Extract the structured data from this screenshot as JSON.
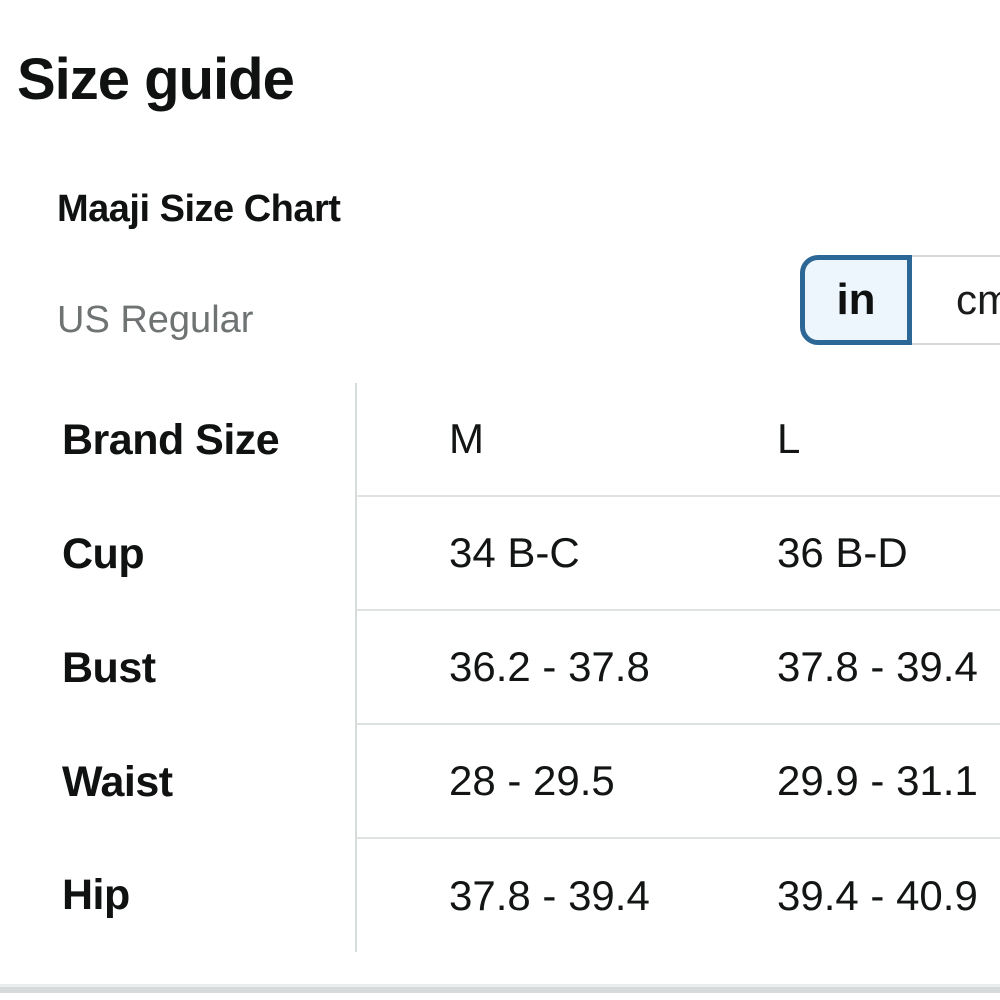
{
  "page": {
    "title": "Size guide"
  },
  "size_chart": {
    "brand_title": "Maaji Size Chart",
    "fit_type": "US Regular"
  },
  "unit_toggle": {
    "selected": "in",
    "in_label": "in",
    "cm_label": "cm",
    "selected_border_color": "#2d6796",
    "selected_bg_color": "#edf6fc"
  },
  "table": {
    "header": {
      "label": "Brand Size",
      "m": "M",
      "l": "L"
    },
    "rows": [
      {
        "label": "Cup",
        "m": "34 B-C",
        "l": "36 B-D"
      },
      {
        "label": "Bust",
        "m": "36.2 - 37.8",
        "l": "37.8 - 39.4"
      },
      {
        "label": "Waist",
        "m": "28 - 29.5",
        "l": "29.9 - 31.1"
      },
      {
        "label": "Hip",
        "m": "37.8 - 39.4",
        "l": "39.4 - 40.9"
      }
    ]
  }
}
